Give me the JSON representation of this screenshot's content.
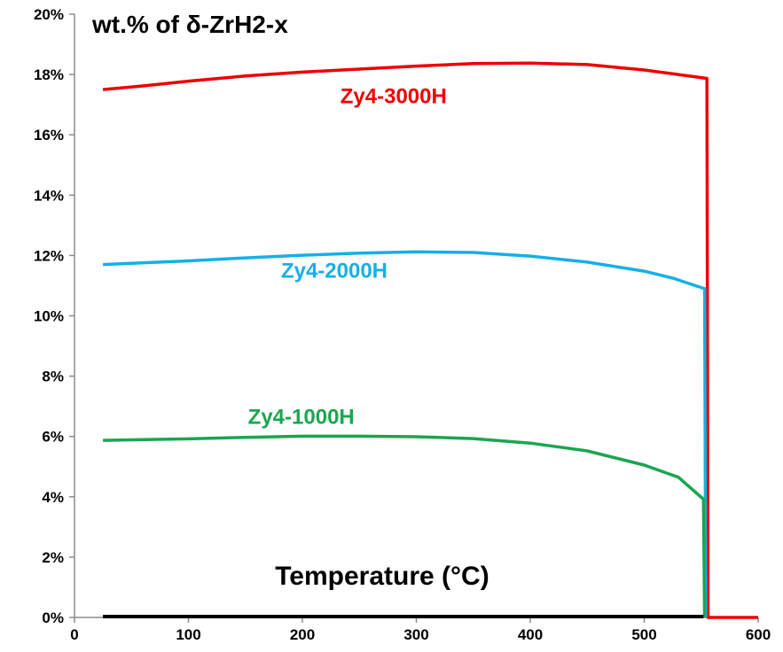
{
  "chart_data": {
    "type": "line",
    "title": "wt.% of δ-ZrH2-x",
    "xlabel": "Temperature (°C)",
    "ylabel": "",
    "xlim": [
      0,
      600
    ],
    "ylim": [
      0,
      0.2
    ],
    "x_ticks": [
      "0",
      "100",
      "200",
      "300",
      "400",
      "500",
      "600"
    ],
    "y_ticks": [
      "0%",
      "2%",
      "4%",
      "6%",
      "8%",
      "10%",
      "12%",
      "14%",
      "16%",
      "18%",
      "20%"
    ],
    "grid": false,
    "legend": "none (series labeled inline)",
    "series": [
      {
        "name": "Zy4-3000H",
        "color": "#ee0000",
        "points": [
          [
            25,
            0.175
          ],
          [
            60,
            0.1762
          ],
          [
            100,
            0.1778
          ],
          [
            150,
            0.1795
          ],
          [
            200,
            0.1808
          ],
          [
            250,
            0.1818
          ],
          [
            300,
            0.1828
          ],
          [
            350,
            0.1836
          ],
          [
            400,
            0.1838
          ],
          [
            450,
            0.1833
          ],
          [
            500,
            0.1815
          ],
          [
            555,
            0.1787
          ],
          [
            556,
            0
          ],
          [
            600,
            0
          ]
        ]
      },
      {
        "name": "Zy4-2000H",
        "color": "#14b0e8",
        "points": [
          [
            25,
            0.117
          ],
          [
            100,
            0.1182
          ],
          [
            150,
            0.1192
          ],
          [
            200,
            0.1201
          ],
          [
            250,
            0.1208
          ],
          [
            300,
            0.1212
          ],
          [
            350,
            0.121
          ],
          [
            400,
            0.1198
          ],
          [
            450,
            0.1178
          ],
          [
            500,
            0.1148
          ],
          [
            525,
            0.1125
          ],
          [
            553,
            0.109
          ],
          [
            554,
            0
          ]
        ]
      },
      {
        "name": "Zy4-1000H",
        "color": "#1aa64f",
        "points": [
          [
            25,
            0.0587
          ],
          [
            100,
            0.0592
          ],
          [
            150,
            0.0597
          ],
          [
            200,
            0.0601
          ],
          [
            250,
            0.0601
          ],
          [
            300,
            0.0599
          ],
          [
            350,
            0.0593
          ],
          [
            400,
            0.0578
          ],
          [
            450,
            0.0552
          ],
          [
            500,
            0.0505
          ],
          [
            530,
            0.0465
          ],
          [
            552,
            0.0392
          ],
          [
            553,
            0
          ]
        ]
      },
      {
        "name": "",
        "color": "#000000",
        "points": [
          [
            25,
            0.0003
          ],
          [
            552,
            0.0003
          ]
        ]
      }
    ]
  },
  "annotations": [
    {
      "key": "Zy4-3000H",
      "text": "Zy4-3000H",
      "color": "#ee0000",
      "x": 280,
      "y": 0.1705
    },
    {
      "key": "Zy4-2000H",
      "text": "Zy4-2000H",
      "color": "#14b0e8",
      "x": 228,
      "y": 0.1127
    },
    {
      "key": "Zy4-1000H",
      "text": "Zy4-1000H",
      "color": "#1aa64f",
      "x": 199,
      "y": 0.0642
    },
    {
      "key": "temperature",
      "text": "Temperature (°C)",
      "color": "#000000",
      "x": 270,
      "y": 0.0109
    }
  ]
}
